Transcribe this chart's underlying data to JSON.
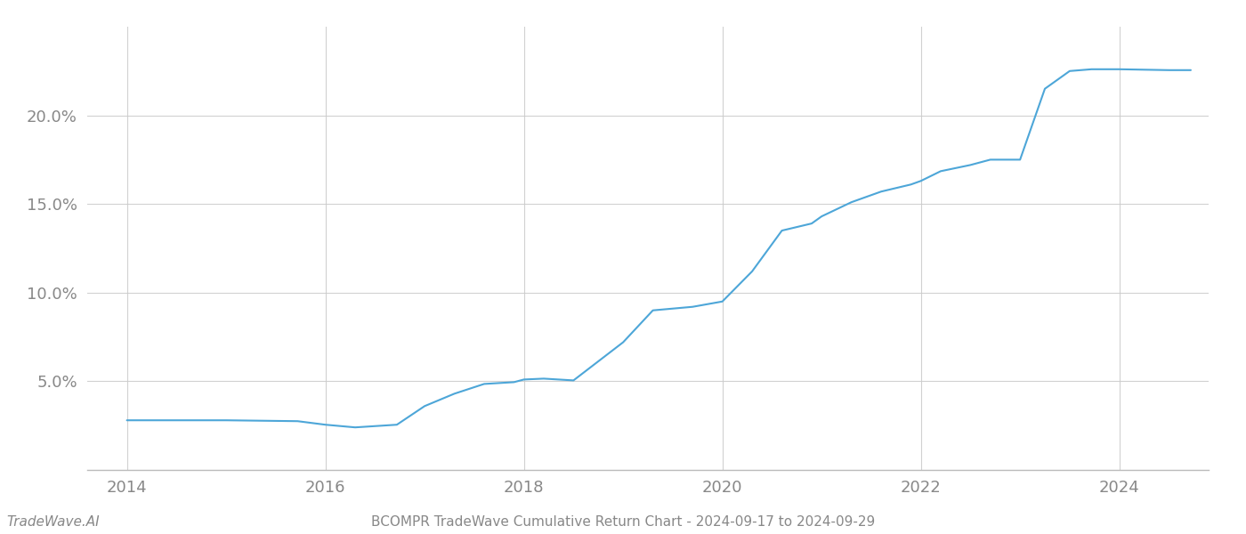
{
  "title": "BCOMPR TradeWave Cumulative Return Chart - 2024-09-17 to 2024-09-29",
  "watermark": "TradeWave.AI",
  "line_color": "#4da6d8",
  "background_color": "#ffffff",
  "grid_color": "#cccccc",
  "x_values": [
    2014.0,
    2014.72,
    2015.0,
    2015.72,
    2016.0,
    2016.3,
    2016.72,
    2017.0,
    2017.3,
    2017.6,
    2017.9,
    2018.0,
    2018.2,
    2018.5,
    2019.0,
    2019.3,
    2019.7,
    2020.0,
    2020.3,
    2020.6,
    2020.9,
    2021.0,
    2021.3,
    2021.6,
    2021.9,
    2022.0,
    2022.2,
    2022.5,
    2022.7,
    2023.0,
    2023.25,
    2023.5,
    2023.72,
    2024.0,
    2024.5,
    2024.72
  ],
  "y_values": [
    2.8,
    2.8,
    2.8,
    2.75,
    2.55,
    2.4,
    2.55,
    3.6,
    4.3,
    4.85,
    4.95,
    5.1,
    5.15,
    5.05,
    7.2,
    9.0,
    9.2,
    9.5,
    11.2,
    13.5,
    13.9,
    14.3,
    15.1,
    15.7,
    16.1,
    16.3,
    16.85,
    17.2,
    17.5,
    17.5,
    21.5,
    22.5,
    22.6,
    22.6,
    22.55,
    22.55
  ],
  "xlim": [
    2013.6,
    2024.9
  ],
  "ylim": [
    0,
    25
  ],
  "yticks": [
    5.0,
    10.0,
    15.0,
    20.0
  ],
  "ytick_labels": [
    "5.0%",
    "10.0%",
    "15.0%",
    "20.0%"
  ],
  "xticks": [
    2014,
    2016,
    2018,
    2020,
    2022,
    2024
  ],
  "xtick_labels": [
    "2014",
    "2016",
    "2018",
    "2020",
    "2022",
    "2024"
  ],
  "tick_label_color": "#888888",
  "line_width": 1.5,
  "figsize": [
    14,
    6
  ],
  "dpi": 100
}
